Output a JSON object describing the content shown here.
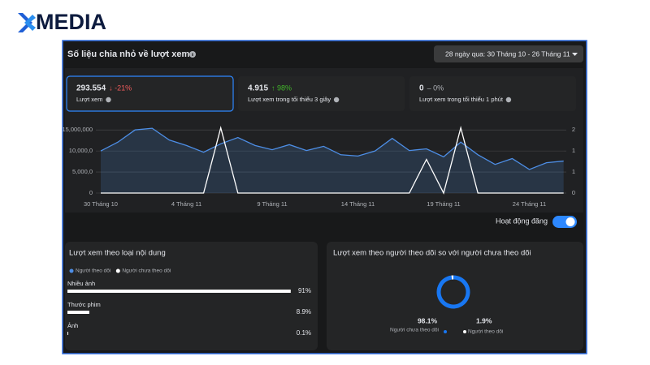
{
  "logo": "MEDIA",
  "header": {
    "title": "Số liệu chia nhỏ về lượt xem",
    "date_range": "28 ngày qua: 30 Tháng 10 - 26 Tháng 11"
  },
  "metrics": [
    {
      "value": "293.554",
      "change": "↓ -21%",
      "label": "Lượt xem"
    },
    {
      "value": "4.915",
      "change": "↑ 98%",
      "label": "Lượt xem trong tối thiểu 3 giây"
    },
    {
      "value": "0",
      "change": "– 0%",
      "label": "Lượt xem trong tối thiểu 1 phút"
    }
  ],
  "chart_data": {
    "type": "line",
    "categories": [
      "30 Tháng 10",
      null,
      null,
      null,
      null,
      "4 Tháng 11",
      null,
      null,
      null,
      null,
      "9 Tháng 11",
      null,
      null,
      null,
      null,
      "14 Tháng 11",
      null,
      null,
      null,
      null,
      "19 Tháng 11",
      null,
      null,
      null,
      null,
      "24 Tháng 11",
      null,
      null
    ],
    "series": [
      {
        "color": "#4d8ee6",
        "area": true,
        "values": [
          10000000,
          12100000,
          15000000,
          15400000,
          12600000,
          11300000,
          9700000,
          11700000,
          13200000,
          11300000,
          10300000,
          11500000,
          10100000,
          11100000,
          9100000,
          8800000,
          10000000,
          13000000,
          10100000,
          10500000,
          8600000,
          12100000,
          9100000,
          6800000,
          8200000,
          5600000,
          7200000,
          7600000
        ]
      },
      {
        "color": "#ffffff",
        "axis": "y2",
        "values": [
          0,
          0,
          0,
          0,
          0,
          0,
          0,
          1.55,
          0,
          0,
          0,
          0,
          0,
          0,
          0,
          0,
          0,
          0,
          0,
          0.8,
          0,
          1.55,
          0,
          0,
          0,
          0,
          0,
          0
        ]
      }
    ],
    "ylim": [
      0,
      16000000
    ],
    "yticks": [
      0,
      {
        "value": 5000000,
        "label": "5,000,0"
      },
      {
        "value": 10000000,
        "label": "10,000,0"
      },
      {
        "value": 15000000,
        "label": "15,000,000"
      }
    ],
    "y2lim": [
      0,
      1.6
    ],
    "y2ticks": [
      0,
      {
        "value": 0.5,
        "label": "1"
      },
      1,
      {
        "value": 1.5,
        "label": "2"
      }
    ],
    "grid": true
  },
  "toggle": {
    "label": "Hoạt động đăng",
    "on": true
  },
  "content_breakdown": {
    "title": "Lượt xem theo loại nội dung",
    "legend": [
      {
        "label": "Người theo dõi",
        "color": "#4d8ee6"
      },
      {
        "label": "Người chưa theo dõi",
        "color": "#ffffff"
      }
    ],
    "rows": [
      {
        "label": "Nhiều ảnh",
        "value": 91,
        "value_label": "91%"
      },
      {
        "label": "Thước phim",
        "value": 8.9,
        "value_label": "8.9%"
      },
      {
        "label": "Ảnh",
        "value": 0.1,
        "value_label": "0.1%"
      }
    ]
  },
  "follower_split": {
    "title": "Lượt xem theo người theo dõi so với người chưa theo dõi",
    "segments": [
      {
        "label": "Người chưa theo dõi",
        "value": 98.1,
        "value_label": "98.1%",
        "color": "#1877f2"
      },
      {
        "label": "Người theo dõi",
        "value": 1.9,
        "value_label": "1.9%",
        "color": "#ffffff"
      }
    ]
  }
}
